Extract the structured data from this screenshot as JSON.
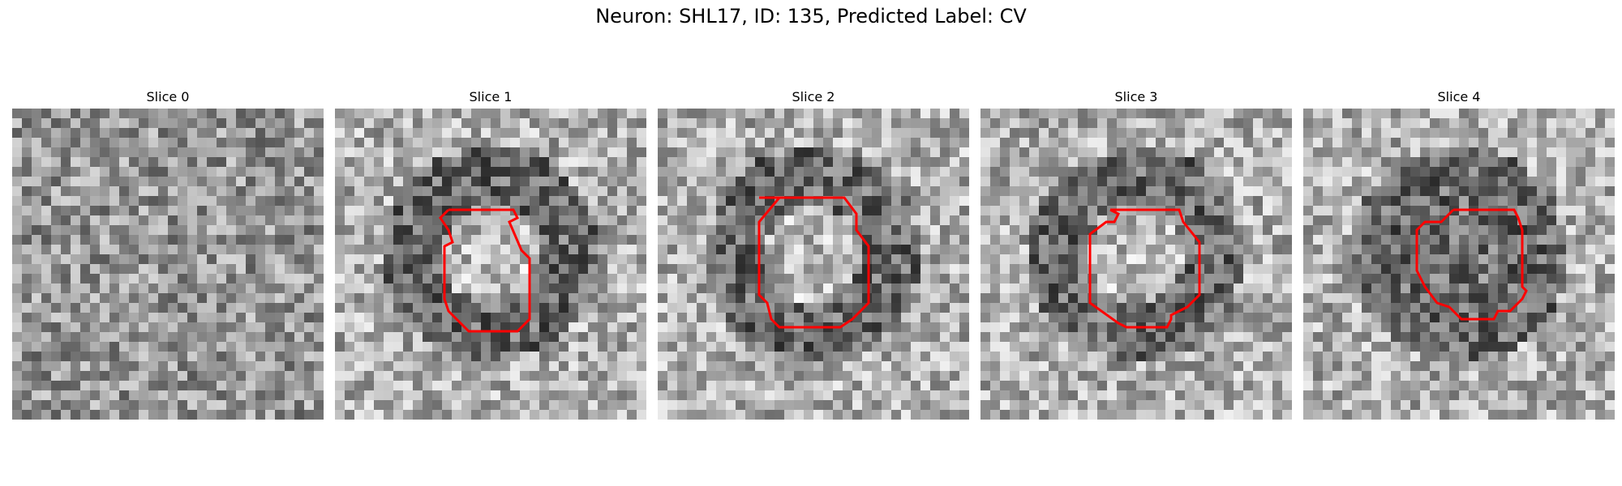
{
  "figure": {
    "title": "Neuron: SHL17, ID: 135, Predicted Label: CV"
  },
  "colors": {
    "contour": "#ff0000"
  },
  "slices": [
    {
      "label": "Slice 0",
      "seed": 11,
      "blob": false,
      "contour": false
    },
    {
      "label": "Slice 1",
      "seed": 23,
      "blob": true,
      "contour": true
    },
    {
      "label": "Slice 2",
      "seed": 37,
      "blob": true,
      "contour": true
    },
    {
      "label": "Slice 3",
      "seed": 49,
      "blob": true,
      "contour": true
    },
    {
      "label": "Slice 4",
      "seed": 61,
      "blob": true,
      "contour": true
    }
  ]
}
